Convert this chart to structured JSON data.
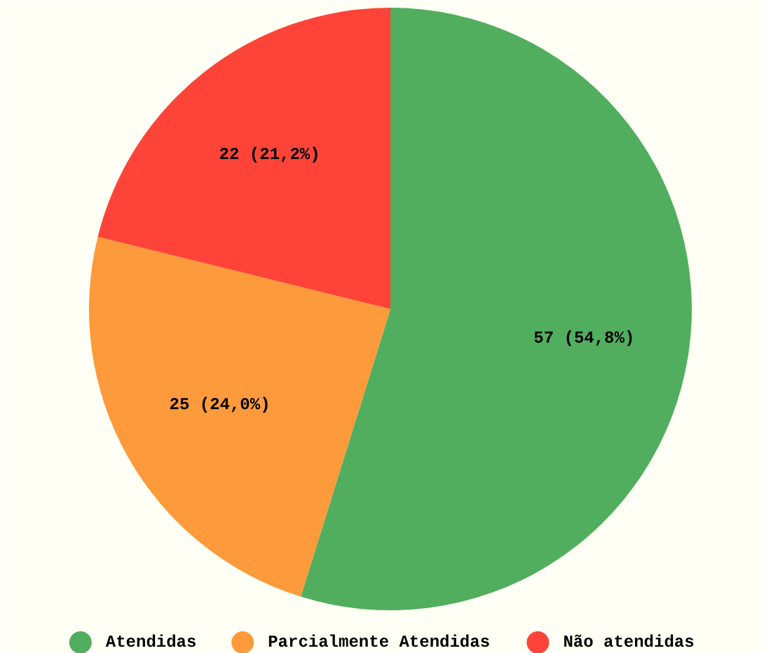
{
  "chart_data": {
    "type": "pie",
    "categories": [
      "Atendidas",
      "Parcialmente Atendidas",
      "Não atendidas"
    ],
    "values": [
      57,
      25,
      22
    ],
    "colors": [
      "#52ae5f",
      "#fd9a3b",
      "#fe4438"
    ],
    "value_labels": [
      "57 (54,8%)",
      "25 (24,0%)",
      "22 (21,2%)"
    ],
    "legend": "bottom"
  }
}
